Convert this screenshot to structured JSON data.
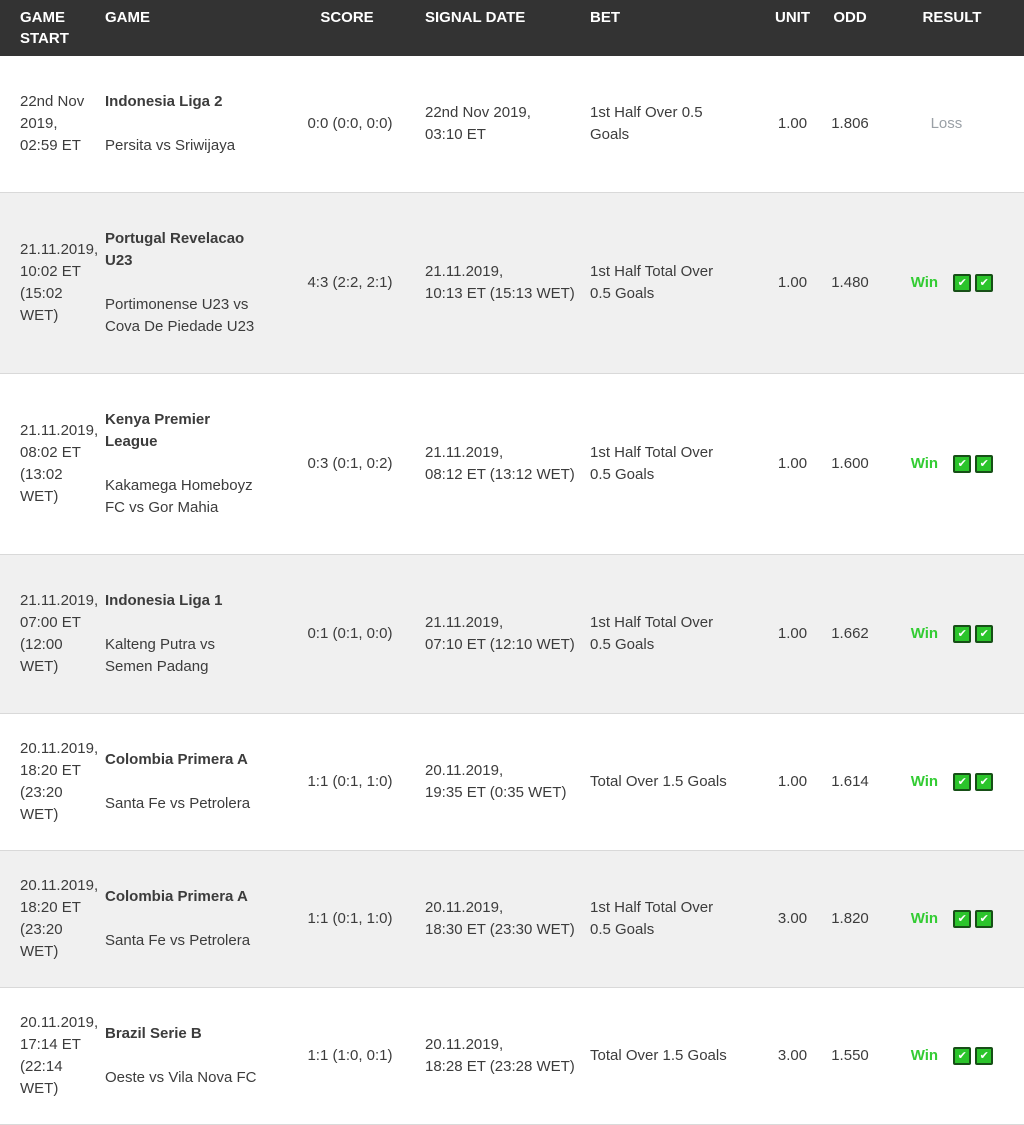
{
  "colors": {
    "header_bg": "#333333",
    "header_text": "#ffffff",
    "row_alt_bg": "#f0f0f0",
    "row_border": "#d9d9d9",
    "win_green": "#33cc33",
    "check_fill": "#2bc42b",
    "check_border": "#174f17",
    "loss_gray": "#9aa0a6",
    "body_text": "#3c3c3c"
  },
  "table": {
    "columns": [
      {
        "label": "GAME START"
      },
      {
        "label": "GAME"
      },
      {
        "label": "SCORE"
      },
      {
        "label": "SIGNAL DATE"
      },
      {
        "label": "BET"
      },
      {
        "label": "UNIT"
      },
      {
        "label": "ODD"
      },
      {
        "label": "RESULT"
      }
    ],
    "rows": [
      {
        "game_start": "22nd Nov\n2019,\n02:59 ET",
        "league": "Indonesia Liga 2",
        "teams": "Persita vs Sriwijaya",
        "score": "0:0 (0:0, 0:0)",
        "signal_date": "22nd Nov 2019,\n03:10 ET",
        "bet": "1st Half Over 0.5\nGoals",
        "unit": "1.00",
        "odd": "1.806",
        "result": "Loss",
        "status": "loss",
        "check_icons": 0
      },
      {
        "game_start": "21.11.2019,\n10:02 ET\n(15:02\nWET)",
        "league": "Portugal Revelacao\nU23",
        "teams": "Portimonense U23 vs\nCova De Piedade U23",
        "score": "4:3 (2:2, 2:1)",
        "signal_date": "21.11.2019,\n10:13 ET (15:13 WET)",
        "bet": "1st Half Total Over\n0.5 Goals",
        "unit": "1.00",
        "odd": "1.480",
        "result": "Win",
        "status": "win",
        "check_icons": 2
      },
      {
        "game_start": "21.11.2019,\n08:02 ET\n(13:02\nWET)",
        "league": "Kenya Premier\nLeague",
        "teams": "Kakamega Homeboyz\nFC vs Gor Mahia",
        "score": "0:3 (0:1, 0:2)",
        "signal_date": "21.11.2019,\n08:12 ET (13:12 WET)",
        "bet": "1st Half Total Over\n0.5 Goals",
        "unit": "1.00",
        "odd": "1.600",
        "result": "Win",
        "status": "win",
        "check_icons": 2
      },
      {
        "game_start": "21.11.2019,\n07:00 ET\n(12:00\nWET)",
        "league": "Indonesia Liga 1",
        "teams": "Kalteng Putra vs\nSemen Padang",
        "score": "0:1 (0:1, 0:0)",
        "signal_date": "21.11.2019,\n07:10 ET (12:10 WET)",
        "bet": "1st Half Total Over\n0.5 Goals",
        "unit": "1.00",
        "odd": "1.662",
        "result": "Win",
        "status": "win",
        "check_icons": 2
      },
      {
        "game_start": "20.11.2019,\n18:20 ET\n(23:20\nWET)",
        "league": "Colombia Primera A",
        "teams": "Santa Fe vs Petrolera",
        "score": "1:1 (0:1, 1:0)",
        "signal_date": "20.11.2019,\n19:35 ET (0:35 WET)",
        "bet": "Total Over 1.5 Goals",
        "unit": "1.00",
        "odd": "1.614",
        "result": "Win",
        "status": "win",
        "check_icons": 2
      },
      {
        "game_start": "20.11.2019,\n18:20 ET\n(23:20\nWET)",
        "league": "Colombia Primera A",
        "teams": "Santa Fe vs Petrolera",
        "score": "1:1 (0:1, 1:0)",
        "signal_date": "20.11.2019,\n18:30 ET (23:30 WET)",
        "bet": "1st Half Total Over\n0.5 Goals",
        "unit": "3.00",
        "odd": "1.820",
        "result": "Win",
        "status": "win",
        "check_icons": 2
      },
      {
        "game_start": "20.11.2019,\n17:14 ET\n(22:14\nWET)",
        "league": "Brazil Serie B",
        "teams": "Oeste vs Vila Nova FC",
        "score": "1:1 (1:0, 0:1)",
        "signal_date": "20.11.2019,\n18:28 ET (23:28 WET)",
        "bet": "Total Over 1.5 Goals",
        "unit": "3.00",
        "odd": "1.550",
        "result": "Win",
        "status": "win",
        "check_icons": 2
      }
    ]
  }
}
